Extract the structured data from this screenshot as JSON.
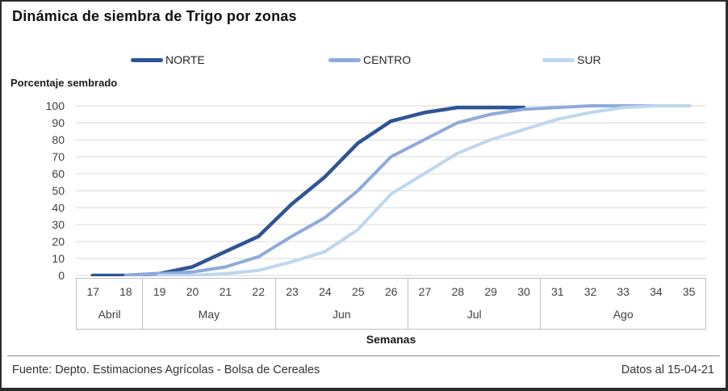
{
  "title": "Dinámica de siembra de Trigo por zonas",
  "y_axis_label": "Porcentaje sembrado",
  "x_axis_label": "Semanas",
  "footer": {
    "source": "Fuente: Depto. Estimaciones Agrícolas - Bolsa de Cereales",
    "date_note": "Datos al 15-04-21"
  },
  "colors": {
    "norte": "#2F5496",
    "centro": "#8FAADC",
    "sur": "#BDD7EE",
    "gridline": "#d9d9d9",
    "axis_border": "#bfbfbf"
  },
  "chart_data": {
    "type": "line",
    "title": "Dinámica de siembra de Trigo por zonas",
    "xlabel": "Semanas",
    "ylabel": "Porcentaje sembrado",
    "ylim": [
      0,
      100
    ],
    "y_ticks": [
      0,
      10,
      20,
      30,
      40,
      50,
      60,
      70,
      80,
      90,
      100
    ],
    "grid": true,
    "legend_position": "top",
    "weeks": [
      17,
      18,
      19,
      20,
      21,
      22,
      23,
      24,
      25,
      26,
      27,
      28,
      29,
      30,
      31,
      32,
      33,
      34,
      35
    ],
    "month_groups": [
      {
        "label": "Abril",
        "weeks": [
          17,
          18
        ]
      },
      {
        "label": "May",
        "weeks": [
          19,
          20,
          21,
          22
        ]
      },
      {
        "label": "Jun",
        "weeks": [
          23,
          24,
          25,
          26
        ]
      },
      {
        "label": "Jul",
        "weeks": [
          27,
          28,
          29,
          30
        ]
      },
      {
        "label": "Ago",
        "weeks": [
          31,
          32,
          33,
          34,
          35
        ]
      }
    ],
    "series": [
      {
        "name": "NORTE",
        "color": "#2F5496",
        "stroke_width": 4.5,
        "points": [
          [
            17,
            0
          ],
          [
            18,
            0
          ],
          [
            19,
            1
          ],
          [
            20,
            5
          ],
          [
            21,
            14
          ],
          [
            22,
            23
          ],
          [
            23,
            42
          ],
          [
            24,
            58
          ],
          [
            25,
            78
          ],
          [
            26,
            91
          ],
          [
            27,
            96
          ],
          [
            28,
            99
          ],
          [
            29,
            99
          ],
          [
            30,
            99
          ]
        ]
      },
      {
        "name": "CENTRO",
        "color": "#8FAADC",
        "stroke_width": 4,
        "points": [
          [
            18,
            0
          ],
          [
            19,
            1
          ],
          [
            20,
            2
          ],
          [
            21,
            5
          ],
          [
            22,
            11
          ],
          [
            23,
            23
          ],
          [
            24,
            34
          ],
          [
            25,
            50
          ],
          [
            26,
            70
          ],
          [
            27,
            80
          ],
          [
            28,
            90
          ],
          [
            29,
            95
          ],
          [
            30,
            98
          ],
          [
            31,
            99
          ],
          [
            32,
            100
          ],
          [
            33,
            100
          ],
          [
            34,
            100
          ],
          [
            35,
            100
          ]
        ]
      },
      {
        "name": "SUR",
        "color": "#BDD7EE",
        "stroke_width": 4,
        "points": [
          [
            19,
            0
          ],
          [
            20,
            0
          ],
          [
            21,
            1
          ],
          [
            22,
            3
          ],
          [
            23,
            8
          ],
          [
            24,
            14
          ],
          [
            25,
            27
          ],
          [
            26,
            48
          ],
          [
            27,
            60
          ],
          [
            28,
            72
          ],
          [
            29,
            80
          ],
          [
            30,
            86
          ],
          [
            31,
            92
          ],
          [
            32,
            96
          ],
          [
            33,
            99
          ],
          [
            34,
            100
          ],
          [
            35,
            100
          ]
        ]
      }
    ]
  }
}
